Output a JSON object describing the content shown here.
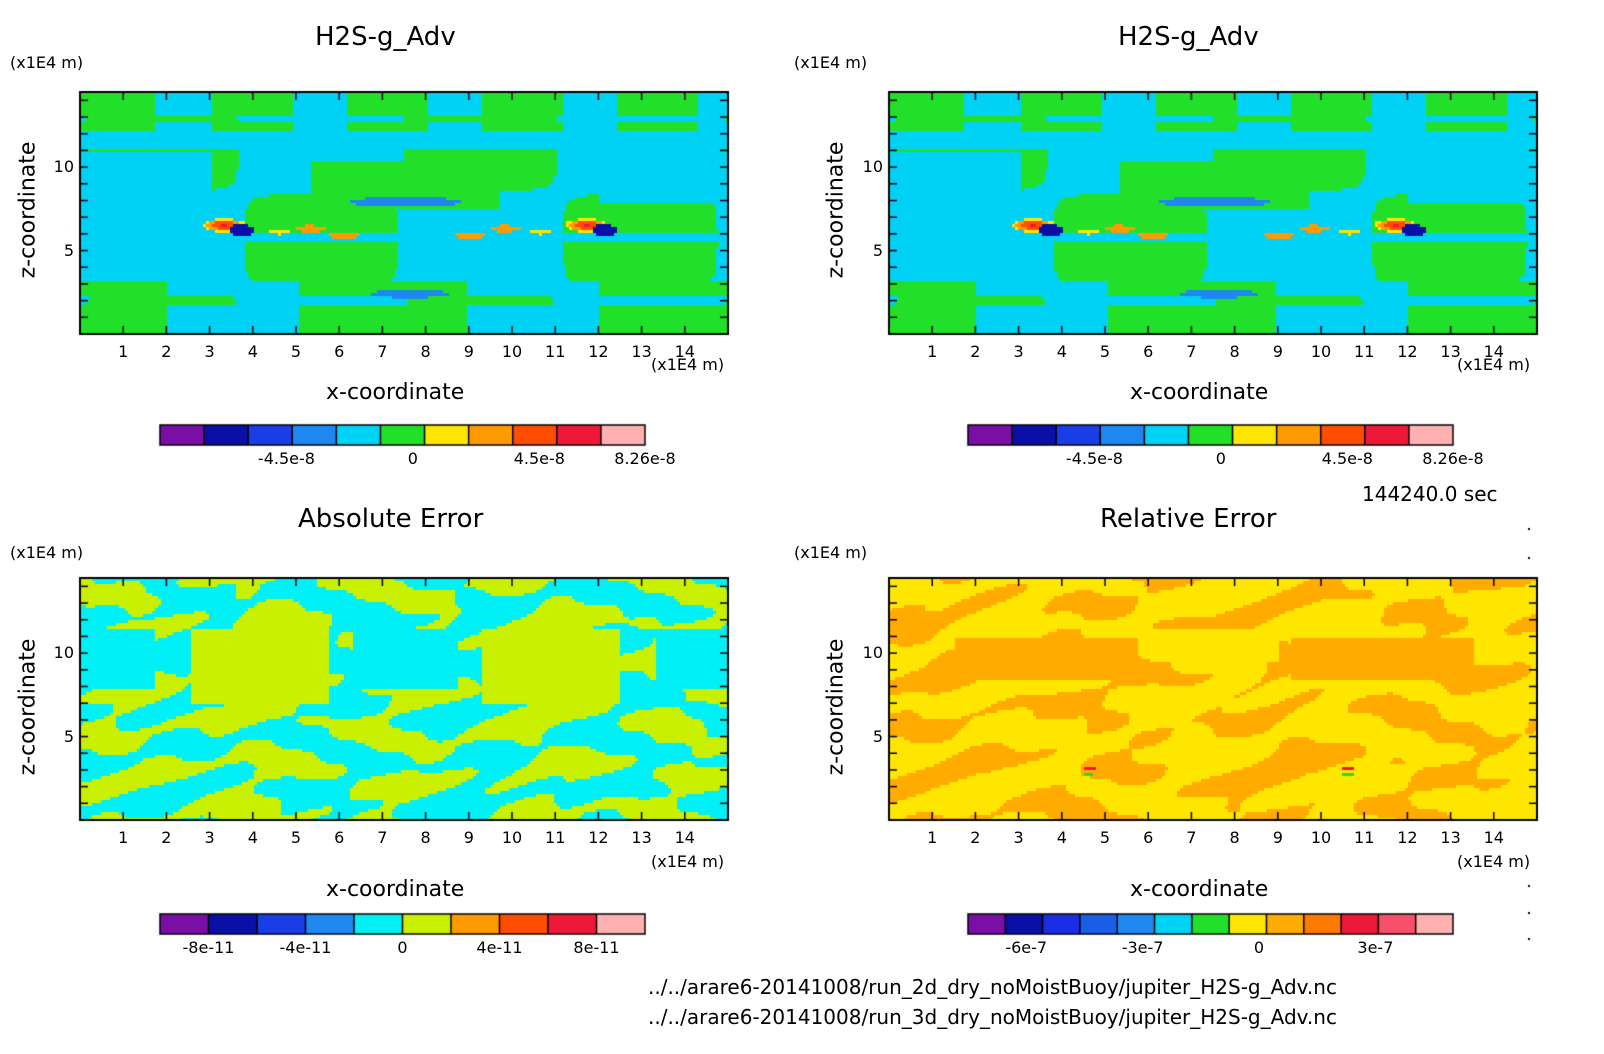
{
  "chart_data": [
    {
      "type": "heatmap",
      "title": "H2S-g_Adv",
      "xlabel": "x-coordinate",
      "ylabel": "z-coordinate",
      "x_unit": "(x1E4 m)",
      "y_unit": "(x1E4 m)",
      "xlim": [
        0,
        15
      ],
      "ylim": [
        0,
        14.5
      ],
      "x_ticks": [
        "1",
        "2",
        "3",
        "4",
        "5",
        "6",
        "7",
        "8",
        "9",
        "10",
        "11",
        "12",
        "13",
        "14"
      ],
      "y_ticks": [
        "5",
        "10"
      ],
      "colorbar": {
        "colors": [
          "#7a0fa6",
          "#0a0fa8",
          "#1a3ee6",
          "#1e88f0",
          "#00d2f5",
          "#22e02a",
          "#ffe600",
          "#ff9a00",
          "#ff4d00",
          "#f01838",
          "#ffb0b0"
        ],
        "tick_labels": [
          "-4.5e-8",
          "0",
          "4.5e-8",
          "8.26e-8"
        ],
        "tick_values": [
          -4.5e-08,
          0,
          4.5e-08,
          8.26e-08
        ],
        "range": [
          -9e-08,
          8.26e-08
        ]
      },
      "field": "h2s_advection"
    },
    {
      "type": "heatmap",
      "title": "H2S-g_Adv",
      "xlabel": "x-coordinate",
      "ylabel": "z-coordinate",
      "x_unit": "(x1E4 m)",
      "y_unit": "(x1E4 m)",
      "xlim": [
        0,
        15
      ],
      "ylim": [
        0,
        14.5
      ],
      "x_ticks": [
        "1",
        "2",
        "3",
        "4",
        "5",
        "6",
        "7",
        "8",
        "9",
        "10",
        "11",
        "12",
        "13",
        "14"
      ],
      "y_ticks": [
        "5",
        "10"
      ],
      "colorbar": {
        "colors": [
          "#7a0fa6",
          "#0a0fa8",
          "#1a3ee6",
          "#1e88f0",
          "#00d2f5",
          "#22e02a",
          "#ffe600",
          "#ff9a00",
          "#ff4d00",
          "#f01838",
          "#ffb0b0"
        ],
        "tick_labels": [
          "-4.5e-8",
          "0",
          "4.5e-8",
          "8.26e-8"
        ],
        "tick_values": [
          -4.5e-08,
          0,
          4.5e-08,
          8.26e-08
        ],
        "range": [
          -9e-08,
          8.26e-08
        ]
      },
      "field": "h2s_advection"
    },
    {
      "type": "heatmap",
      "title": "Absolute Error",
      "xlabel": "x-coordinate",
      "ylabel": "z-coordinate",
      "x_unit": "(x1E4 m)",
      "y_unit": "(x1E4 m)",
      "xlim": [
        0,
        15
      ],
      "ylim": [
        0,
        14.5
      ],
      "x_ticks": [
        "1",
        "2",
        "3",
        "4",
        "5",
        "6",
        "7",
        "8",
        "9",
        "10",
        "11",
        "12",
        "13",
        "14"
      ],
      "y_ticks": [
        "5",
        "10"
      ],
      "colorbar": {
        "colors": [
          "#7a0fa6",
          "#0a0fa8",
          "#1a3ee6",
          "#1e88f0",
          "#00f0f5",
          "#c8f000",
          "#ff9a00",
          "#ff4d00",
          "#f01838",
          "#ffb0b0"
        ],
        "tick_labels": [
          "-8e-11",
          "-4e-11",
          "0",
          "4e-11",
          "8e-11"
        ],
        "tick_values": [
          -8e-11,
          -4e-11,
          0,
          4e-11,
          8e-11
        ],
        "range": [
          -1e-10,
          1e-10
        ]
      },
      "field": "absolute_error"
    },
    {
      "type": "heatmap",
      "title": "Relative Error",
      "xlabel": "x-coordinate",
      "ylabel": "z-coordinate",
      "x_unit": "(x1E4 m)",
      "y_unit": "(x1E4 m)",
      "xlim": [
        0,
        15
      ],
      "ylim": [
        0,
        14.5
      ],
      "x_ticks": [
        "1",
        "2",
        "3",
        "4",
        "5",
        "6",
        "7",
        "8",
        "9",
        "10",
        "11",
        "12",
        "13",
        "14"
      ],
      "y_ticks": [
        "5",
        "10"
      ],
      "colorbar": {
        "colors": [
          "#7a0fa6",
          "#0a0fa8",
          "#1a2ee6",
          "#1a5ee8",
          "#1e88f0",
          "#00d2f5",
          "#22e02a",
          "#ffe600",
          "#ffab00",
          "#ff7a00",
          "#f01838",
          "#f8506a",
          "#ffb0b0"
        ],
        "tick_labels": [
          "-6e-7",
          "-3e-7",
          "0",
          "3e-7"
        ],
        "tick_values": [
          -6e-07,
          -3e-07,
          0,
          3e-07
        ],
        "range": [
          -7.5e-07,
          5e-07
        ]
      },
      "field": "relative_error"
    }
  ],
  "time_label": "144240.0 sec",
  "files": [
    "../../arare6-20141008/run_2d_dry_noMoistBuoy/jupiter_H2S-g_Adv.nc",
    "../../arare6-20141008/run_3d_dry_noMoistBuoy/jupiter_H2S-g_Adv.nc"
  ]
}
